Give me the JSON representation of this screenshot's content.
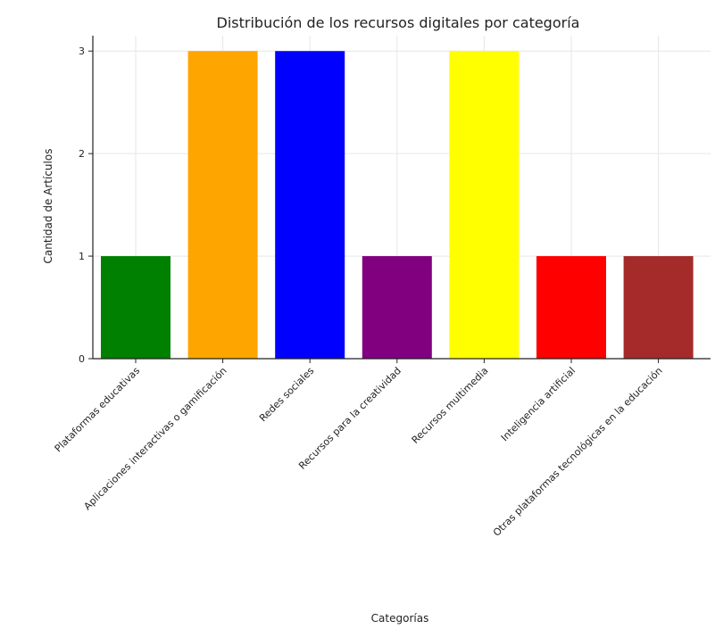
{
  "chart_data": {
    "type": "bar",
    "title": "Distribución de los recursos digitales por categoría",
    "xlabel": "Categorías",
    "ylabel": "Cantidad de Artículos",
    "categories": [
      "Plataformas educativas",
      "Aplicaciones interactivas o gamificación",
      "Redes sociales",
      "Recursos para la creatividad",
      "Recursos multimedia",
      "Inteligencia artificial",
      "Otras plataformas tecnológicas en la educación"
    ],
    "values": [
      1,
      3,
      3,
      1,
      3,
      1,
      1
    ],
    "colors": [
      "#008000",
      "#FFA500",
      "#0000FF",
      "#800080",
      "#FFFF00",
      "#FF0000",
      "#A52A2A"
    ],
    "ylim": [
      0,
      3.15
    ],
    "yticks": [
      0,
      1,
      2,
      3
    ],
    "grid": true
  }
}
